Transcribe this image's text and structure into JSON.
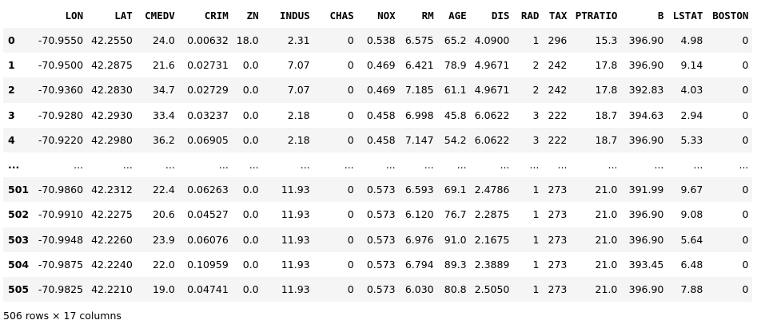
{
  "dataframe": {
    "columns": [
      "LON",
      "LAT",
      "CMEDV",
      "CRIM",
      "ZN",
      "INDUS",
      "CHAS",
      "NOX",
      "RM",
      "AGE",
      "DIS",
      "RAD",
      "TAX",
      "PTRATIO",
      "B",
      "LSTAT",
      "BOSTON"
    ],
    "rows": [
      {
        "index": "0",
        "cells": [
          "-70.9550",
          "42.2550",
          "24.0",
          "0.00632",
          "18.0",
          "2.31",
          "0",
          "0.538",
          "6.575",
          "65.2",
          "4.0900",
          "1",
          "296",
          "15.3",
          "396.90",
          "4.98",
          "0"
        ]
      },
      {
        "index": "1",
        "cells": [
          "-70.9500",
          "42.2875",
          "21.6",
          "0.02731",
          "0.0",
          "7.07",
          "0",
          "0.469",
          "6.421",
          "78.9",
          "4.9671",
          "2",
          "242",
          "17.8",
          "396.90",
          "9.14",
          "0"
        ]
      },
      {
        "index": "2",
        "cells": [
          "-70.9360",
          "42.2830",
          "34.7",
          "0.02729",
          "0.0",
          "7.07",
          "0",
          "0.469",
          "7.185",
          "61.1",
          "4.9671",
          "2",
          "242",
          "17.8",
          "392.83",
          "4.03",
          "0"
        ]
      },
      {
        "index": "3",
        "cells": [
          "-70.9280",
          "42.2930",
          "33.4",
          "0.03237",
          "0.0",
          "2.18",
          "0",
          "0.458",
          "6.998",
          "45.8",
          "6.0622",
          "3",
          "222",
          "18.7",
          "394.63",
          "2.94",
          "0"
        ]
      },
      {
        "index": "4",
        "cells": [
          "-70.9220",
          "42.2980",
          "36.2",
          "0.06905",
          "0.0",
          "2.18",
          "0",
          "0.458",
          "7.147",
          "54.2",
          "6.0622",
          "3",
          "222",
          "18.7",
          "396.90",
          "5.33",
          "0"
        ]
      },
      {
        "index": "...",
        "cells": [
          "...",
          "...",
          "...",
          "...",
          "...",
          "...",
          "...",
          "...",
          "...",
          "...",
          "...",
          "...",
          "...",
          "...",
          "...",
          "...",
          "..."
        ]
      },
      {
        "index": "501",
        "cells": [
          "-70.9860",
          "42.2312",
          "22.4",
          "0.06263",
          "0.0",
          "11.93",
          "0",
          "0.573",
          "6.593",
          "69.1",
          "2.4786",
          "1",
          "273",
          "21.0",
          "391.99",
          "9.67",
          "0"
        ]
      },
      {
        "index": "502",
        "cells": [
          "-70.9910",
          "42.2275",
          "20.6",
          "0.04527",
          "0.0",
          "11.93",
          "0",
          "0.573",
          "6.120",
          "76.7",
          "2.2875",
          "1",
          "273",
          "21.0",
          "396.90",
          "9.08",
          "0"
        ]
      },
      {
        "index": "503",
        "cells": [
          "-70.9948",
          "42.2260",
          "23.9",
          "0.06076",
          "0.0",
          "11.93",
          "0",
          "0.573",
          "6.976",
          "91.0",
          "2.1675",
          "1",
          "273",
          "21.0",
          "396.90",
          "5.64",
          "0"
        ]
      },
      {
        "index": "504",
        "cells": [
          "-70.9875",
          "42.2240",
          "22.0",
          "0.10959",
          "0.0",
          "11.93",
          "0",
          "0.573",
          "6.794",
          "89.3",
          "2.3889",
          "1",
          "273",
          "21.0",
          "393.45",
          "6.48",
          "0"
        ]
      },
      {
        "index": "505",
        "cells": [
          "-70.9825",
          "42.2210",
          "19.0",
          "0.04741",
          "0.0",
          "11.93",
          "0",
          "0.573",
          "6.030",
          "80.8",
          "2.5050",
          "1",
          "273",
          "21.0",
          "396.90",
          "7.88",
          "0"
        ]
      }
    ],
    "shape_caption": "506 rows × 17 columns"
  },
  "colors": {
    "stripe": "#f5f5f5",
    "background": "#ffffff",
    "text": "#000000"
  }
}
